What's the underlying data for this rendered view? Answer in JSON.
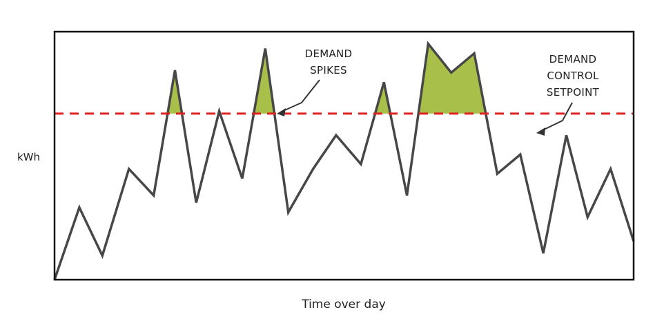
{
  "chart_data": {
    "type": "line",
    "title": "",
    "ylabel": "kWh",
    "xlabel": "Time over day",
    "series": [
      {
        "values": [
          0,
          3.0,
          1.0,
          4.6,
          3.5,
          8.7,
          3.2,
          7.0,
          4.2,
          9.6,
          2.8,
          4.6,
          6.0,
          4.8,
          8.2,
          3.5,
          9.8,
          8.6,
          9.4,
          4.4,
          5.2,
          1.1,
          6.0,
          2.6,
          4.6,
          1.6
        ]
      }
    ],
    "x": [
      0,
      1.4,
      2.7,
      4.2,
      5.6,
      6.8,
      8.0,
      9.3,
      10.6,
      11.9,
      13.2,
      14.6,
      15.9,
      17.3,
      18.6,
      19.9,
      21.1,
      22.4,
      23.7,
      25.0,
      26.3,
      27.6,
      28.9,
      30.1,
      31.4,
      32.7
    ],
    "xlim": [
      0,
      32.7
    ],
    "ylim": [
      0,
      10.3
    ],
    "threshold": {
      "value": 6.9,
      "label": "DEMAND CONTROL SETPOINT"
    },
    "fill_above_threshold": true,
    "grid": false,
    "colors": {
      "line": "#474747",
      "threshold": "#e02020",
      "fill": "#a8c04a",
      "frame": "#111111"
    }
  },
  "annotations": {
    "spikes_line1": "DEMAND",
    "spikes_line2": "SPIKES",
    "setpoint_line1": "DEMAND",
    "setpoint_line2": "CONTROL",
    "setpoint_line3": "SETPOINT"
  }
}
